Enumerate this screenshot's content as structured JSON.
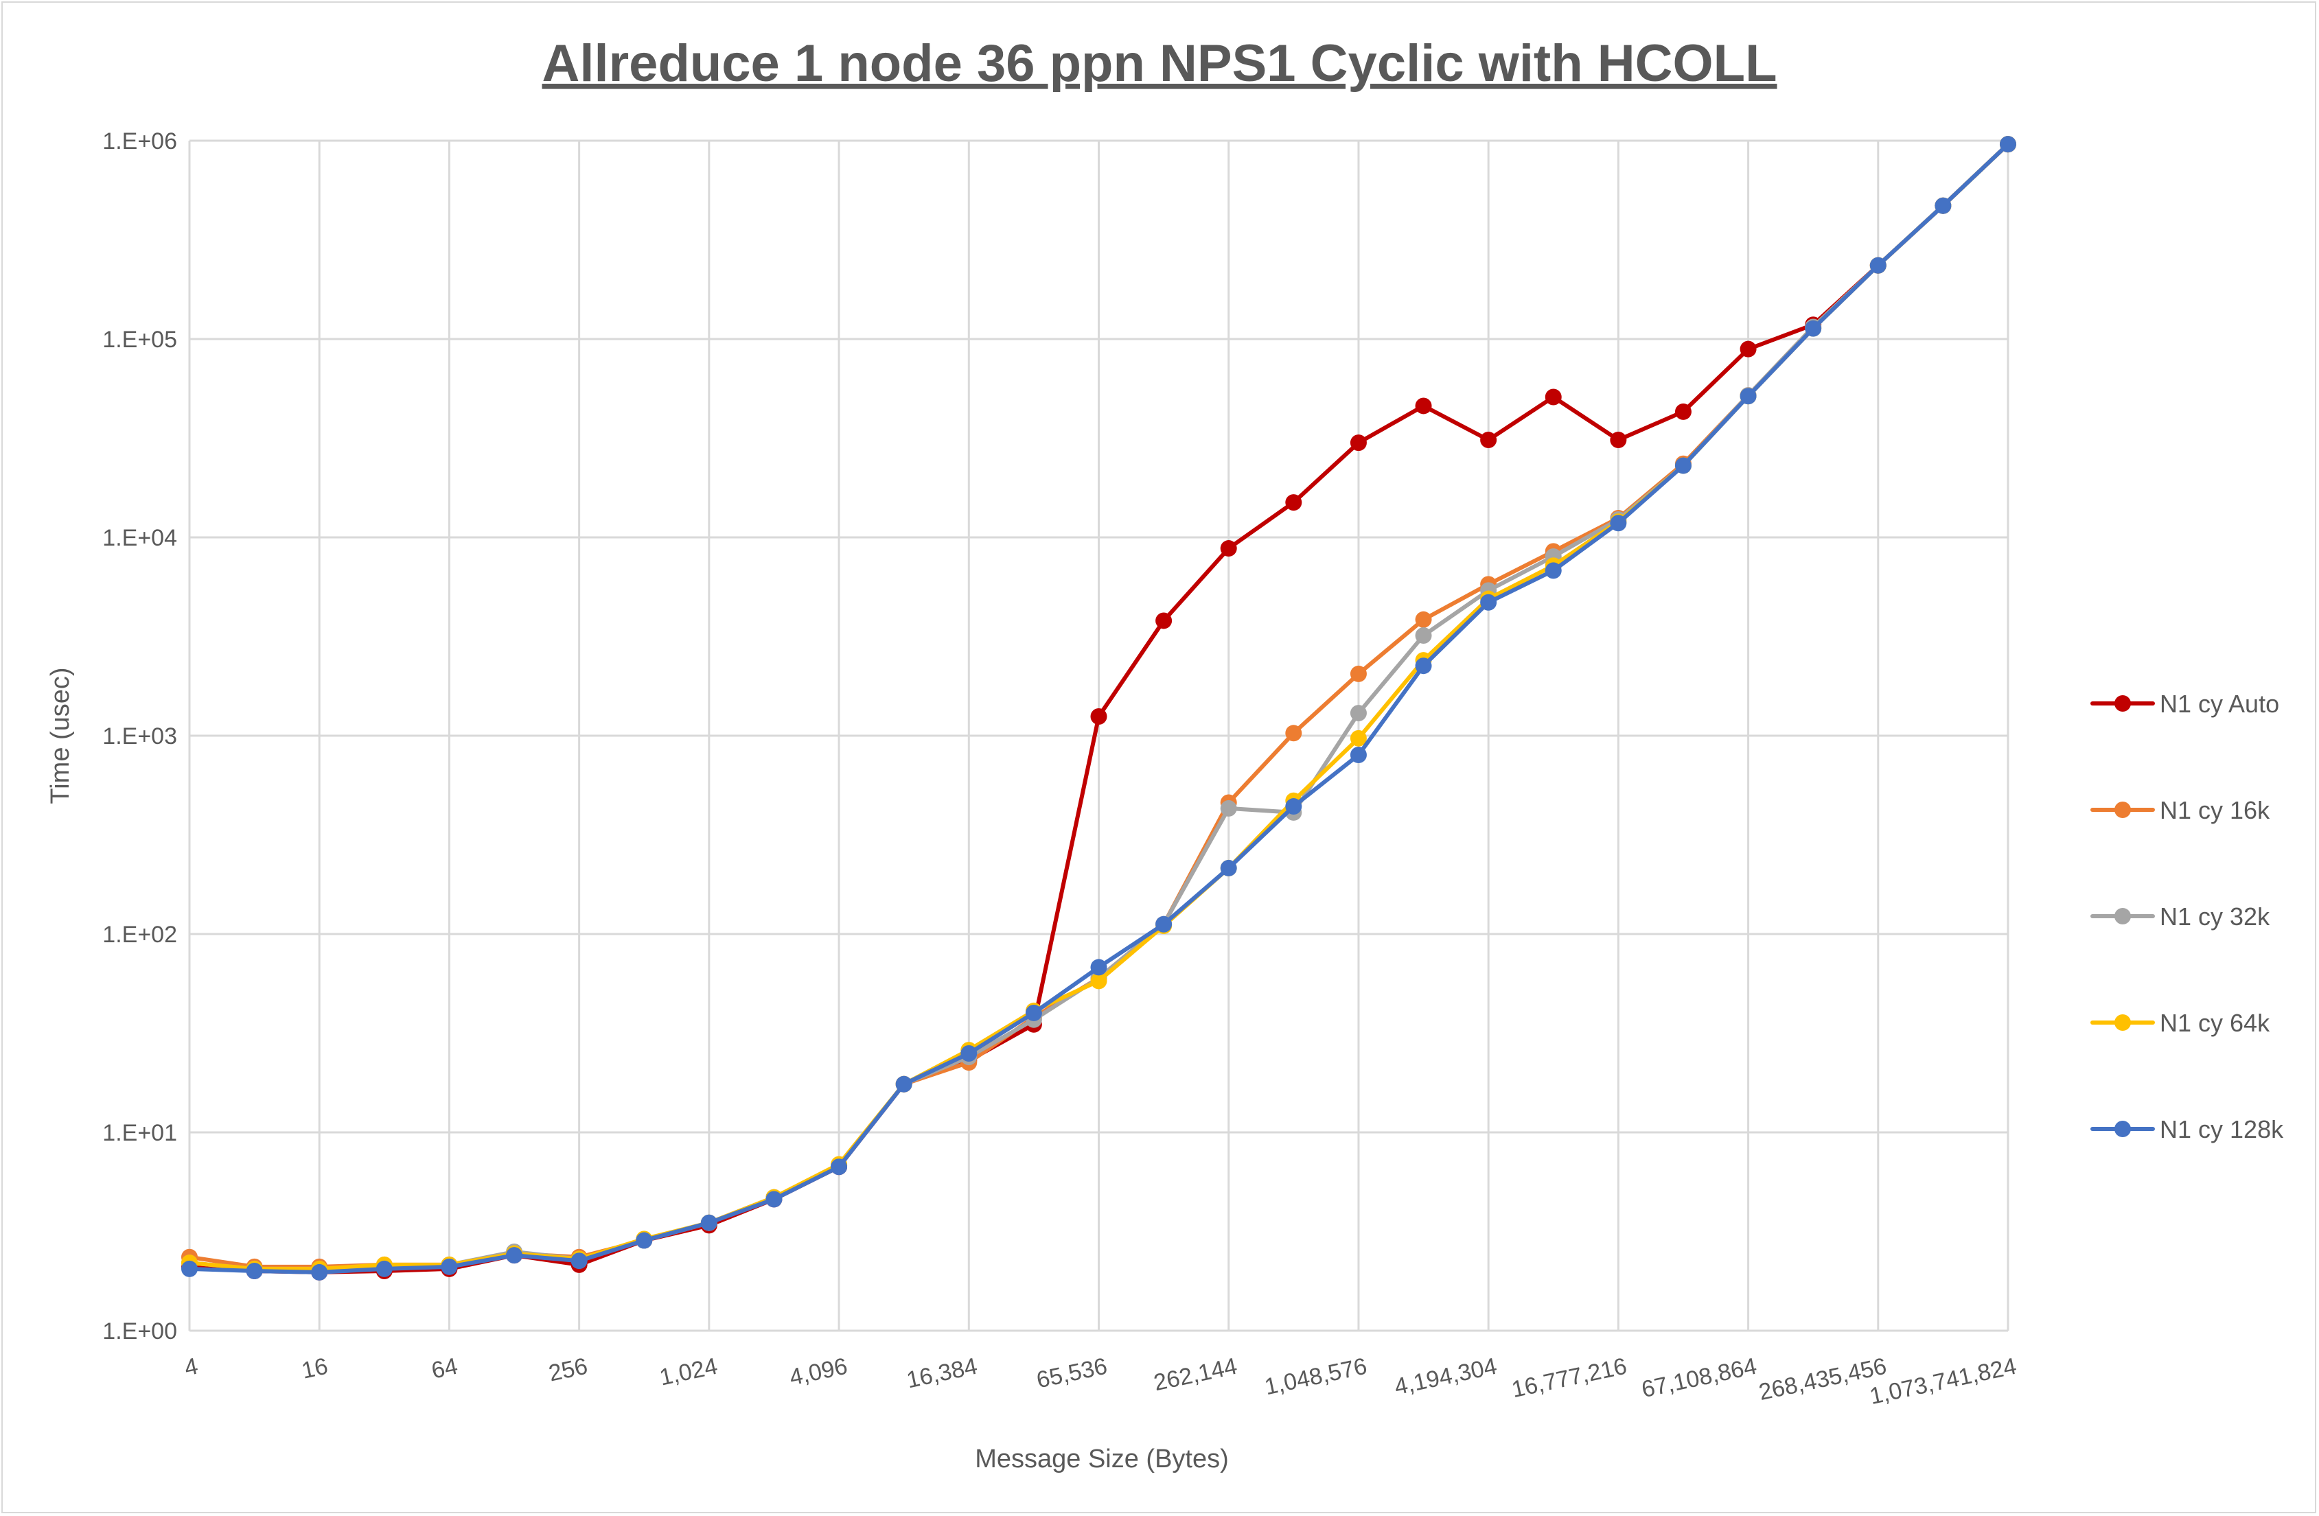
{
  "chart_data": {
    "type": "line",
    "title": "Allreduce 1 node 36 ppn NPS1 Cyclic with HCOLL",
    "xlabel": "Message Size (Bytes)",
    "ylabel": "Time (usec)",
    "yscale": "log",
    "ylim": [
      1,
      1000000
    ],
    "yticks": [
      "1.E+00",
      "1.E+01",
      "1.E+02",
      "1.E+03",
      "1.E+04",
      "1.E+05",
      "1.E+06"
    ],
    "grid": true,
    "legend_position": "right",
    "x": [
      4,
      8,
      16,
      32,
      64,
      128,
      256,
      512,
      1024,
      2048,
      4096,
      8192,
      16384,
      32768,
      65536,
      131072,
      262144,
      524288,
      1048576,
      2097152,
      4194304,
      8388608,
      16777216,
      33554432,
      67108864,
      134217728,
      268435456,
      536870912,
      1073741824
    ],
    "xtick_labels": [
      "4",
      "16",
      "64",
      "256",
      "1,024",
      "4,096",
      "16,384",
      "65,536",
      "262,144",
      "1,048,576",
      "4,194,304",
      "16,777,216",
      "67,108,864",
      "268,435,456",
      "1,073,741,824"
    ],
    "series": [
      {
        "name": "N1 cy Auto",
        "color": "#c00000",
        "values": [
          2.1,
          2.0,
          1.97,
          2.0,
          2.05,
          2.4,
          2.15,
          2.85,
          3.4,
          4.6,
          6.7,
          17.5,
          23,
          35,
          1250,
          3800,
          8800,
          15000,
          30000,
          46000,
          31000,
          51000,
          31000,
          43000,
          89000,
          118000,
          235000,
          470000,
          960000
        ]
      },
      {
        "name": "N1 cy 16k",
        "color": "#ed7d31",
        "values": [
          2.35,
          2.1,
          2.1,
          2.15,
          2.15,
          2.45,
          2.35,
          2.85,
          3.5,
          4.7,
          6.8,
          17.5,
          22.5,
          38,
          60,
          112,
          460,
          1030,
          2050,
          3850,
          5800,
          8500,
          12500,
          23500,
          52000,
          115000,
          235000,
          470000,
          960000
        ]
      },
      {
        "name": "N1 cy 32k",
        "color": "#a5a5a5",
        "values": [
          2.2,
          2.05,
          2.05,
          2.1,
          2.15,
          2.5,
          2.3,
          2.85,
          3.5,
          4.7,
          6.8,
          17.5,
          24,
          37,
          60,
          112,
          430,
          410,
          1300,
          3200,
          5400,
          8000,
          12300,
          23000,
          52000,
          115000,
          235000,
          470000,
          960000
        ]
      },
      {
        "name": "N1 cy 64k",
        "color": "#ffc000",
        "values": [
          2.2,
          2.05,
          2.05,
          2.15,
          2.15,
          2.45,
          2.3,
          2.9,
          3.5,
          4.7,
          6.9,
          17.5,
          26,
          41,
          58,
          110,
          215,
          470,
          970,
          2400,
          4900,
          7200,
          12000,
          23000,
          51500,
          113000,
          235000,
          470000,
          960000
        ]
      },
      {
        "name": "N1 cy 128k",
        "color": "#4472c4",
        "values": [
          2.05,
          2.0,
          1.97,
          2.05,
          2.1,
          2.4,
          2.25,
          2.85,
          3.5,
          4.6,
          6.7,
          17.5,
          25,
          40,
          68,
          112,
          215,
          440,
          800,
          2250,
          4700,
          6800,
          11800,
          23000,
          51500,
          113000,
          235000,
          470000,
          960000
        ]
      }
    ]
  }
}
